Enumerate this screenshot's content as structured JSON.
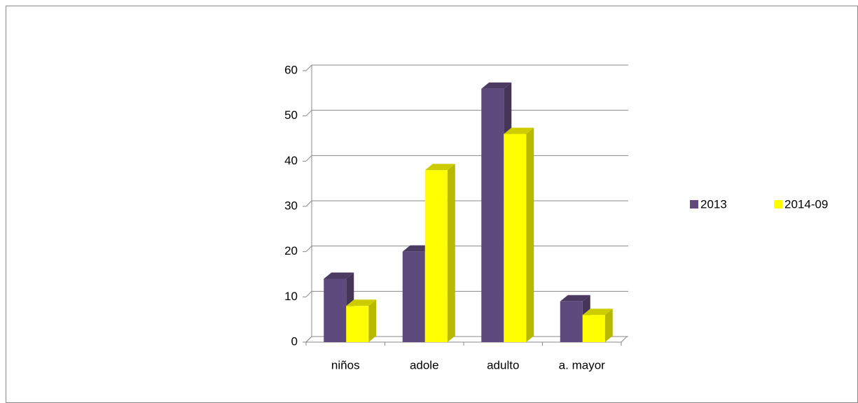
{
  "chart_data": {
    "type": "bar3d",
    "categories": [
      "niños",
      "adole",
      "adulto",
      "a. mayor"
    ],
    "series": [
      {
        "name": "2013",
        "color": "#5e4a7c",
        "values": [
          14,
          20,
          56,
          9
        ]
      },
      {
        "name": "2014-09",
        "color": "#ffff00",
        "values": [
          8,
          38,
          46,
          6
        ]
      }
    ],
    "ylim": [
      0,
      60
    ],
    "yticks": [
      0,
      10,
      20,
      30,
      40,
      50,
      60
    ],
    "grid": true,
    "legend": "right"
  }
}
